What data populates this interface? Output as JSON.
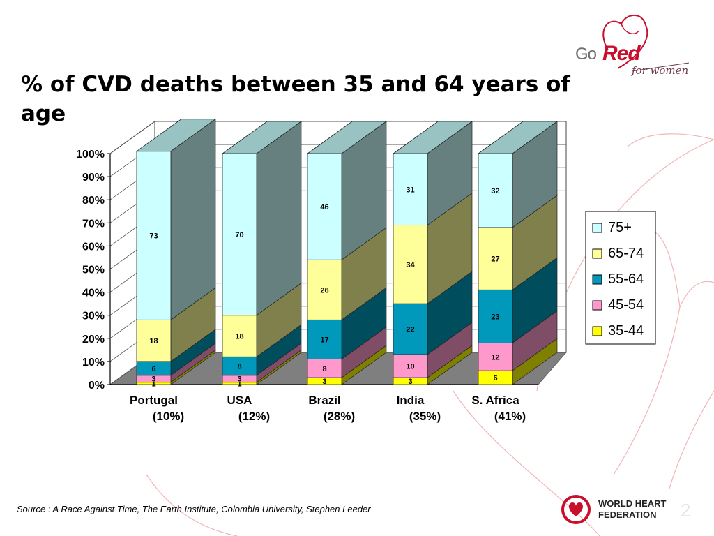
{
  "title": "% of CVD deaths between 35 and 64 years of age",
  "source": "Source : A Race Against Time, The Earth Institute, Colombia University, Stephen Leeder",
  "page_number": "2",
  "logos": {
    "go_red_go": "Go",
    "go_red_red": "Red",
    "go_red_tagline": "for women",
    "whf_line1": "WORLD HEART",
    "whf_line2": "FEDERATION"
  },
  "colors": {
    "35-44": "#ffff00",
    "45-54": "#ff99cc",
    "55-64": "#0099bb",
    "65-74": "#ffff99",
    "75+": "#ccffff",
    "top_face": "#99c2c2",
    "floor": "#7f7f7f",
    "accent_red": "#c8102e"
  },
  "chart_data": {
    "type": "bar",
    "stacked": true,
    "three_d": true,
    "categories": [
      "Portugal",
      "USA",
      "Brazil",
      "India",
      "S. Africa"
    ],
    "category_sublabels": [
      "(10%)",
      "(12%)",
      "(28%)",
      "(35%)",
      "(41%)"
    ],
    "series": [
      {
        "name": "35-44",
        "values": [
          1,
          1,
          3,
          3,
          6
        ]
      },
      {
        "name": "45-54",
        "values": [
          3,
          3,
          8,
          10,
          12
        ]
      },
      {
        "name": "55-64",
        "values": [
          6,
          8,
          17,
          22,
          23
        ]
      },
      {
        "name": "65-74",
        "values": [
          18,
          18,
          26,
          34,
          27
        ]
      },
      {
        "name": "75+",
        "values": [
          73,
          70,
          46,
          31,
          32
        ]
      }
    ],
    "y_ticks": [
      "0%",
      "10%",
      "20%",
      "30%",
      "40%",
      "50%",
      "60%",
      "70%",
      "80%",
      "90%",
      "100%"
    ],
    "ylim": [
      0,
      100
    ],
    "grid": true,
    "legend": "right"
  }
}
